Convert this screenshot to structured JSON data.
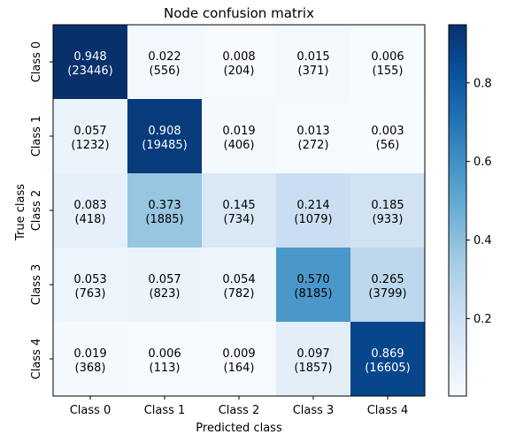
{
  "chart_data": {
    "type": "heatmap",
    "title": "Node confusion matrix",
    "xlabel": "Predicted class",
    "ylabel": "True class",
    "x_categories": [
      "Class 0",
      "Class 1",
      "Class 2",
      "Class 3",
      "Class 4"
    ],
    "y_categories": [
      "Class 0",
      "Class 1",
      "Class 2",
      "Class 3",
      "Class 4"
    ],
    "ratios": [
      [
        0.948,
        0.022,
        0.008,
        0.015,
        0.006
      ],
      [
        0.057,
        0.908,
        0.019,
        0.013,
        0.003
      ],
      [
        0.083,
        0.373,
        0.145,
        0.214,
        0.185
      ],
      [
        0.053,
        0.057,
        0.054,
        0.57,
        0.265
      ],
      [
        0.019,
        0.006,
        0.009,
        0.097,
        0.869
      ]
    ],
    "counts": [
      [
        23446,
        556,
        204,
        371,
        155
      ],
      [
        1232,
        19485,
        406,
        272,
        56
      ],
      [
        418,
        1885,
        734,
        1079,
        933
      ],
      [
        763,
        823,
        782,
        8185,
        3799
      ],
      [
        368,
        113,
        164,
        1857,
        16605
      ]
    ],
    "colormap": "Blues",
    "colorbar": {
      "ticks": [
        0.2,
        0.4,
        0.6,
        0.8
      ],
      "tick_labels": [
        "0.2",
        "0.4",
        "0.6",
        "0.8"
      ],
      "range": [
        0.003,
        0.948
      ]
    }
  }
}
